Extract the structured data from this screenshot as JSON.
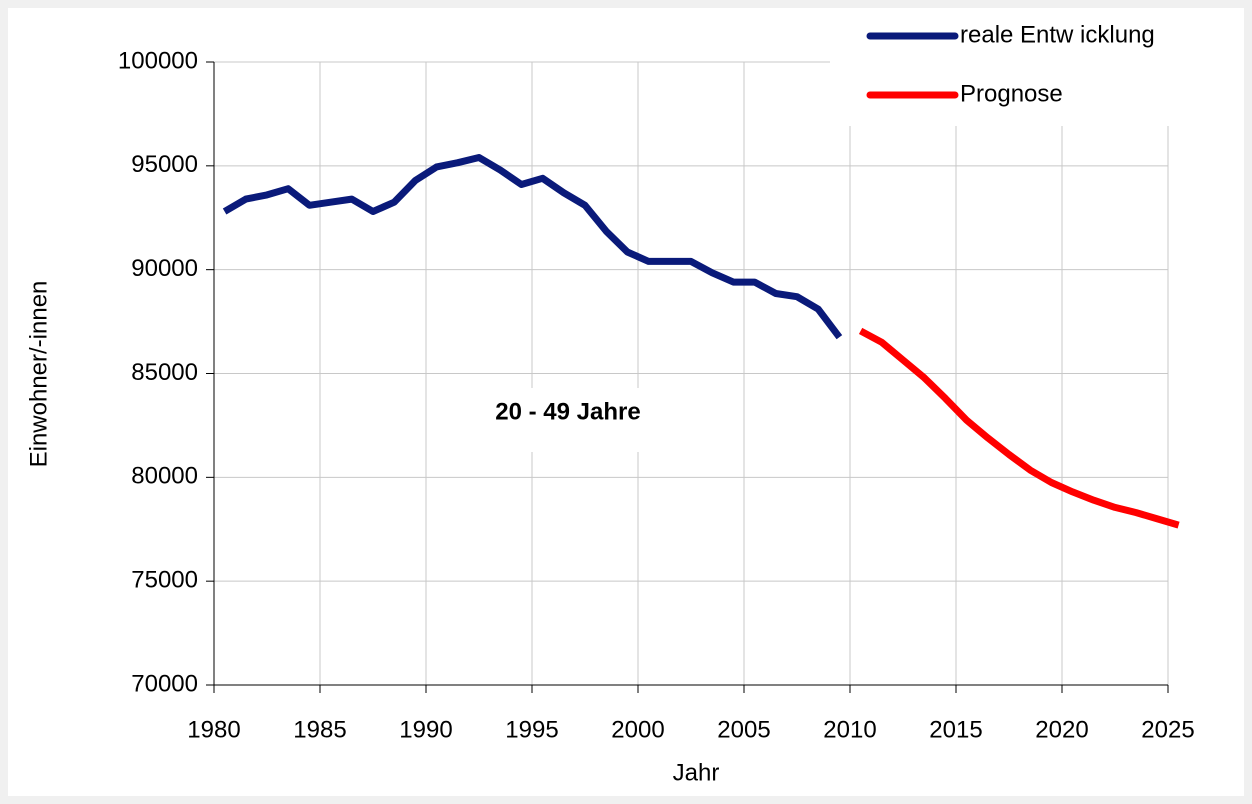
{
  "chart_data": {
    "type": "line",
    "x": [
      1980,
      1981,
      1982,
      1983,
      1984,
      1985,
      1986,
      1987,
      1988,
      1989,
      1990,
      1991,
      1992,
      1993,
      1994,
      1995,
      1996,
      1997,
      1998,
      1999,
      2000,
      2001,
      2002,
      2003,
      2004,
      2005,
      2006,
      2007,
      2008,
      2009,
      2010,
      2011,
      2012,
      2013,
      2014,
      2015,
      2016,
      2017,
      2018,
      2019,
      2020,
      2021,
      2022,
      2023,
      2024,
      2025
    ],
    "series": [
      {
        "name": "reale Entw icklung",
        "color": "#0a1a7a",
        "values": [
          92800,
          93400,
          93600,
          93900,
          93100,
          93250,
          93400,
          92800,
          93250,
          94300,
          94950,
          95150,
          95400,
          94800,
          94100,
          94400,
          93700,
          93100,
          91850,
          90850,
          90400,
          90400,
          90400,
          89850,
          89400,
          89400,
          88850,
          88700,
          88100,
          86750,
          null,
          null,
          null,
          null,
          null,
          null,
          null,
          null,
          null,
          null,
          null,
          null,
          null,
          null,
          null,
          null
        ]
      },
      {
        "name": "Prognose",
        "color": "#ff0000",
        "values": [
          null,
          null,
          null,
          null,
          null,
          null,
          null,
          null,
          null,
          null,
          null,
          null,
          null,
          null,
          null,
          null,
          null,
          null,
          null,
          null,
          null,
          null,
          null,
          null,
          null,
          null,
          null,
          null,
          null,
          null,
          87050,
          86500,
          85650,
          84800,
          83800,
          82750,
          81900,
          81100,
          80350,
          79750,
          79300,
          78900,
          78550,
          78300,
          78000,
          77700
        ]
      }
    ],
    "xlim": [
      1980,
      2025
    ],
    "xticks": [
      1980,
      1985,
      1990,
      1995,
      2000,
      2005,
      2010,
      2015,
      2020,
      2025
    ],
    "ylim": [
      70000,
      100000
    ],
    "yticks": [
      70000,
      75000,
      80000,
      85000,
      90000,
      95000,
      100000
    ],
    "grid": true,
    "legend": "top-right",
    "x_label": "Jahr",
    "y_label": "Einwohner/-innen",
    "annotation": "20 - 49 Jahre"
  }
}
